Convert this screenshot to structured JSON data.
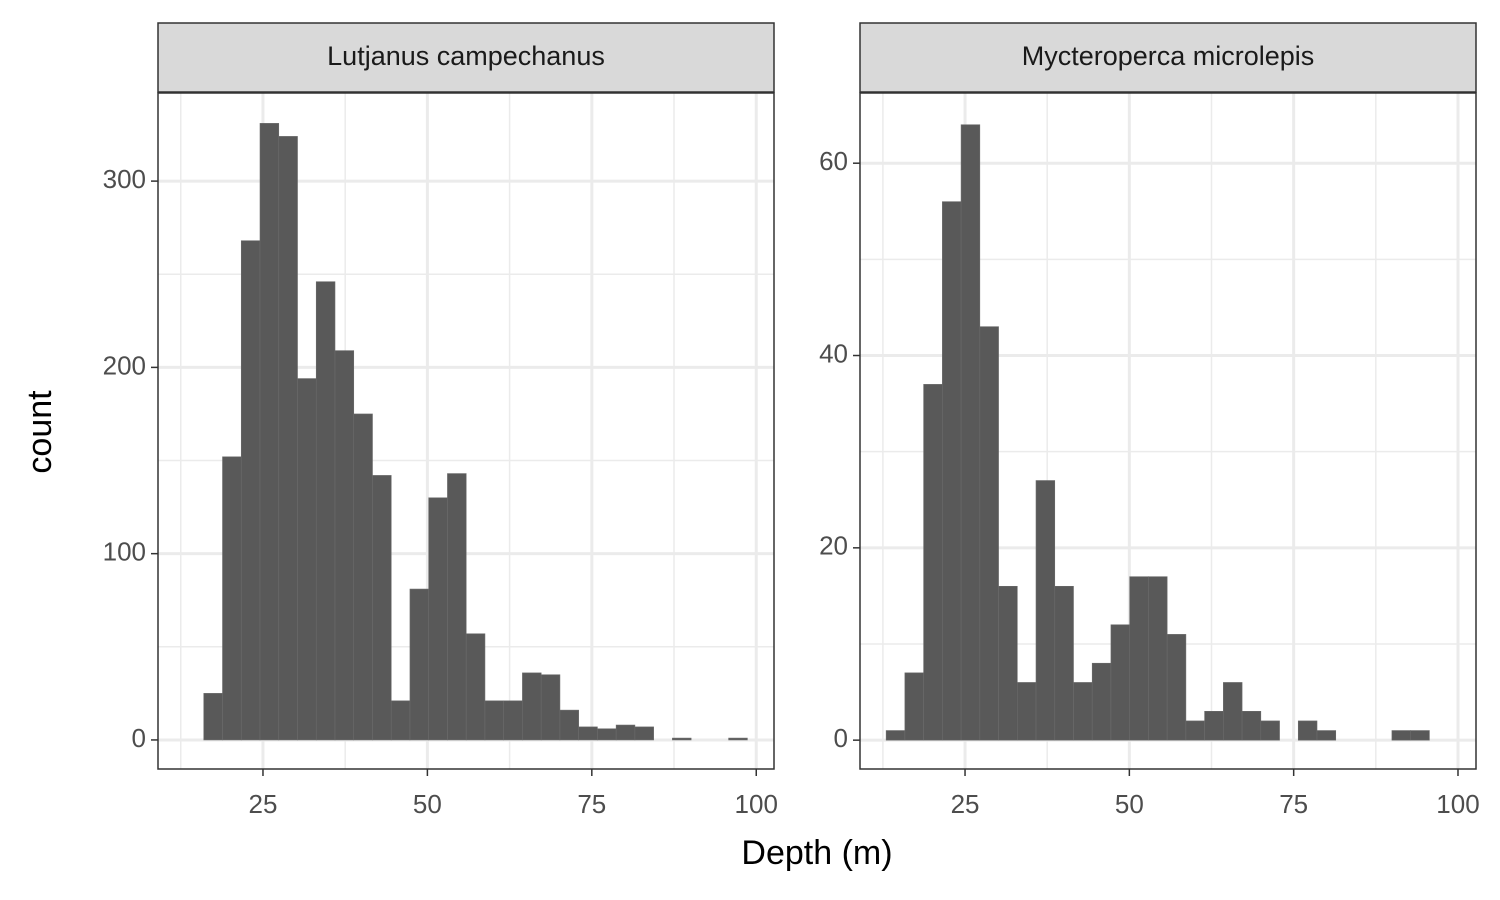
{
  "chart_data": [
    {
      "type": "histogram",
      "title": "Lutjanus campechanus",
      "color": "#595959",
      "grid": true,
      "bins": [
        16.0,
        18.85,
        21.7,
        24.55,
        27.4,
        30.25,
        33.1,
        35.95,
        38.8,
        41.65,
        44.5,
        47.35,
        50.2,
        53.05,
        55.9,
        58.75,
        61.6,
        64.45,
        67.3,
        70.15,
        73.0,
        75.85,
        78.7,
        81.55,
        84.4,
        87.25,
        90.1,
        92.95,
        95.8,
        98.65
      ],
      "values": [
        25,
        152,
        268,
        331,
        324,
        194,
        246,
        209,
        175,
        142,
        21,
        81,
        130,
        143,
        57,
        21,
        21,
        36,
        35,
        16,
        7,
        6,
        8,
        7,
        0,
        1,
        0,
        0,
        1
      ],
      "xlim": [
        9.04,
        102.7
      ],
      "ylim": [
        -15.6,
        347.3
      ],
      "xticks": [
        25,
        50,
        75,
        100
      ],
      "yticks": [
        0,
        100,
        200,
        300
      ]
    },
    {
      "type": "histogram",
      "title": "Mycteroperca microlepis",
      "color": "#595959",
      "grid": true,
      "bins": [
        13.0,
        15.85,
        18.7,
        21.55,
        24.4,
        27.25,
        30.1,
        32.95,
        35.8,
        38.65,
        41.5,
        44.35,
        47.2,
        50.05,
        52.9,
        55.75,
        58.6,
        61.45,
        64.3,
        67.15,
        70.0,
        72.85,
        75.7,
        78.55,
        81.4,
        84.25,
        87.1,
        89.95,
        92.8,
        95.65
      ],
      "values": [
        1,
        7,
        37,
        56,
        64,
        43,
        16,
        6,
        27,
        16,
        6,
        8,
        12,
        17,
        17,
        11,
        2,
        3,
        6,
        3,
        2,
        0,
        2,
        1,
        0,
        0,
        0,
        1,
        1
      ],
      "xlim": [
        9.02,
        102.74
      ],
      "ylim": [
        -3.0,
        67.3
      ],
      "xticks": [
        25,
        50,
        75,
        100
      ],
      "yticks": [
        0,
        20,
        40,
        60
      ]
    }
  ],
  "x_label": "Depth (m)",
  "y_label": "count"
}
